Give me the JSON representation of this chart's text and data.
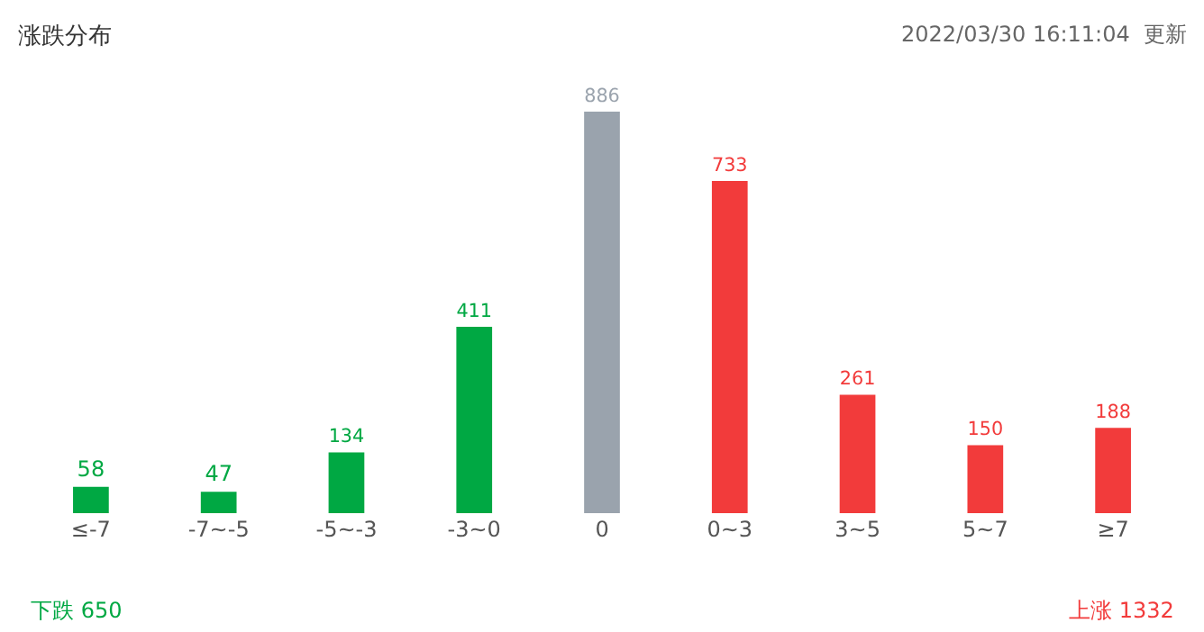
{
  "chart_data": {
    "type": "bar",
    "title": "涨跌分布",
    "categories": [
      "≤-7",
      "-7~-5",
      "-5~-3",
      "-3~0",
      "0",
      "0~3",
      "3~5",
      "5~7",
      "≥7"
    ],
    "values": [
      58,
      47,
      134,
      411,
      886,
      733,
      261,
      150,
      188
    ],
    "colors": [
      "#00a843",
      "#00a843",
      "#00a843",
      "#00a843",
      "#9aa3ad",
      "#f23b3b",
      "#f23b3b",
      "#f23b3b",
      "#f23b3b"
    ],
    "data_labels": true,
    "annotations": [
      "2022/03/30 16:11:04  更新",
      "下跌 650",
      "上涨 1332"
    ]
  }
}
